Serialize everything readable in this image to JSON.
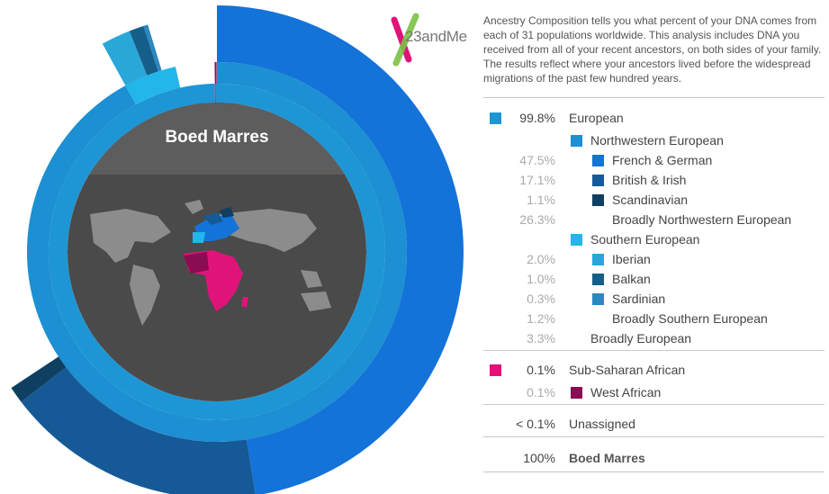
{
  "colors": {
    "european": "#1e96d6",
    "northwestern": "#1d8fd3",
    "french_german": "#1473d8",
    "british_irish": "#155a97",
    "scandinavian": "#0f3f61",
    "southern": "#22b6ea",
    "iberian": "#2aa7d9",
    "balkan": "#165e8a",
    "sardinian": "#2b88c1",
    "sub_saharan": "#e0137a",
    "west_african": "#8a0c52",
    "map_bg": "#4a4a4a",
    "title_band": "#5d5d5d",
    "land": "#8c8c8c"
  },
  "logo": {
    "text": "23andMe"
  },
  "person": {
    "name": "Boed Marres"
  },
  "intro": "Ancestry Composition tells you what percent of your DNA comes from each of 31 populations worldwide. This analysis includes DNA you received from all of your recent ancestors, on both sides of your family. The results reflect where your ancestors lived before the widespread migrations of the past few hundred years.",
  "rows": [
    {
      "pct": "99.8%",
      "label": "European",
      "swatch": "european",
      "level": 0
    },
    {
      "pct": "",
      "label": "Northwestern European",
      "swatch": "northwestern",
      "level": 1
    },
    {
      "pct": "47.5%",
      "label": "French & German",
      "swatch": "french_german",
      "level": 2
    },
    {
      "pct": "17.1%",
      "label": "British & Irish",
      "swatch": "british_irish",
      "level": 2
    },
    {
      "pct": "1.1%",
      "label": "Scandinavian",
      "swatch": "scandinavian",
      "level": 2
    },
    {
      "pct": "26.3%",
      "label": "Broadly Northwestern European",
      "swatch": "",
      "level": 2
    },
    {
      "pct": "",
      "label": "Southern European",
      "swatch": "southern",
      "level": 1
    },
    {
      "pct": "2.0%",
      "label": "Iberian",
      "swatch": "iberian",
      "level": 2
    },
    {
      "pct": "1.0%",
      "label": "Balkan",
      "swatch": "balkan",
      "level": 2
    },
    {
      "pct": "0.3%",
      "label": "Sardinian",
      "swatch": "sardinian",
      "level": 2
    },
    {
      "pct": "1.2%",
      "label": "Broadly Southern European",
      "swatch": "",
      "level": 2
    },
    {
      "pct": "3.3%",
      "label": "Broadly European",
      "swatch": "",
      "level": 1
    },
    {
      "pct": "0.1%",
      "label": "Sub-Saharan African",
      "swatch": "sub_saharan",
      "level": 0
    },
    {
      "pct": "0.1%",
      "label": "West African",
      "swatch": "west_african",
      "level": 1
    },
    {
      "pct": "< 0.1%",
      "label": "Unassigned",
      "swatch": "",
      "level": 0
    },
    {
      "pct": "100%",
      "label": "Boed Marres",
      "swatch": "",
      "level": 0,
      "bold": true
    }
  ],
  "chart_data": {
    "type": "pie",
    "rings": [
      {
        "name": "region",
        "slices": [
          {
            "label": "European",
            "value": 99.8,
            "color": "european"
          },
          {
            "label": "Sub-Saharan African",
            "value": 0.1,
            "color": "sub_saharan"
          }
        ]
      },
      {
        "name": "subregion",
        "slices": [
          {
            "label": "Northwestern European",
            "value": 92.0,
            "color": "northwestern"
          },
          {
            "label": "Southern European",
            "value": 4.5,
            "color": "southern"
          },
          {
            "label": "West African",
            "value": 0.1,
            "color": "west_african"
          }
        ]
      },
      {
        "name": "population",
        "slices": [
          {
            "label": "French & German",
            "value": 47.5,
            "color": "french_german"
          },
          {
            "label": "British & Irish",
            "value": 17.1,
            "color": "british_irish"
          },
          {
            "label": "Scandinavian",
            "value": 1.1,
            "color": "scandinavian"
          },
          {
            "label": "Iberian",
            "value": 2.0,
            "color": "iberian"
          },
          {
            "label": "Balkan",
            "value": 1.0,
            "color": "balkan"
          },
          {
            "label": "Sardinian",
            "value": 0.3,
            "color": "sardinian"
          }
        ]
      }
    ]
  }
}
